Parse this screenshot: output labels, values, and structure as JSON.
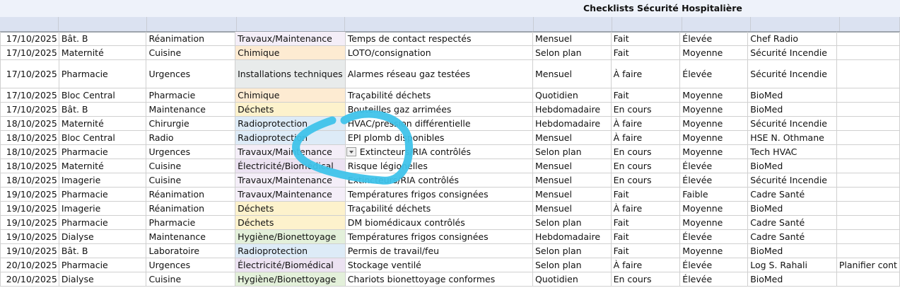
{
  "title": "Checklists Sécurité Hospitalière",
  "category_colors": {
    "Travaux/Maintenance": "#f4eef8",
    "Chimique": "#fdebd2",
    "Installations techniques": "#e8ebeb",
    "Déchets": "#fdf2cc",
    "Radioprotection": "#ddebf7",
    "Électricité/Biomédical": "#ece2f2",
    "Hygiène/Bionettoyage": "#e3f0da"
  },
  "annotation_color": "#3fc3ea",
  "dropdown_icon": "chevron-down-icon",
  "rows": [
    [
      "17/10/2025",
      "Bât. B",
      "Réanimation",
      "Travaux/Maintenance",
      "Temps de contact respectés",
      "Mensuel",
      "Fait",
      "Élevée",
      "Chef Radio",
      ""
    ],
    [
      "17/10/2025",
      "Maternité",
      "Cuisine",
      "Chimique",
      "LOTO/consignation",
      "Selon plan",
      "Fait",
      "Moyenne",
      "Sécurité Incendie",
      ""
    ],
    [
      "17/10/2025",
      "Pharmacie",
      "Urgences",
      "Installations techniques",
      "Alarmes réseau gaz testées",
      "Mensuel",
      "À faire",
      "Élevée",
      "Sécurité Incendie",
      ""
    ],
    [
      "17/10/2025",
      "Bloc Central",
      "Pharmacie",
      "Chimique",
      "Traçabilité déchets",
      "Quotidien",
      "Fait",
      "Moyenne",
      "BioMed",
      ""
    ],
    [
      "17/10/2025",
      "Bât. B",
      "Maintenance",
      "Déchets",
      "Bouteilles gaz arrimées",
      "Hebdomadaire",
      "En cours",
      "Moyenne",
      "BioMed",
      ""
    ],
    [
      "18/10/2025",
      "Maternité",
      "Chirurgie",
      "Radioprotection",
      "HVAC/pression différentielle",
      "Hebdomadaire",
      "À faire",
      "Moyenne",
      "Sécurité Incendie",
      ""
    ],
    [
      "18/10/2025",
      "Bloc Central",
      "Radio",
      "Radioprotection",
      "EPI plomb disponibles",
      "Mensuel",
      "À faire",
      "Moyenne",
      "HSE N. Othmane",
      ""
    ],
    [
      "18/10/2025",
      "Pharmacie",
      "Urgences",
      "Travaux/Maintenance",
      "Extincteurs/RIA contrôlés",
      "Selon plan",
      "En cours",
      "Moyenne",
      "Tech HVAC",
      ""
    ],
    [
      "18/10/2025",
      "Maternité",
      "Cuisine",
      "Électricité/Biomédical",
      "Risque légionelles",
      "Mensuel",
      "En cours",
      "Élevée",
      "BioMed",
      ""
    ],
    [
      "18/10/2025",
      "Imagerie",
      "Cuisine",
      "Travaux/Maintenance",
      "Extincteurs/RIA contrôlés",
      "Mensuel",
      "En cours",
      "Élevée",
      "Sécurité Incendie",
      ""
    ],
    [
      "19/10/2025",
      "Pharmacie",
      "Réanimation",
      "Travaux/Maintenance",
      "Températures frigos consignées",
      "Mensuel",
      "Fait",
      "Faible",
      "Cadre Santé",
      ""
    ],
    [
      "19/10/2025",
      "Imagerie",
      "Réanimation",
      "Déchets",
      "Traçabilité déchets",
      "Mensuel",
      "À faire",
      "Moyenne",
      "BioMed",
      ""
    ],
    [
      "19/10/2025",
      "Pharmacie",
      "Pharmacie",
      "Déchets",
      "DM biomédicaux contrôlés",
      "Selon plan",
      "Fait",
      "Moyenne",
      "Cadre Santé",
      ""
    ],
    [
      "19/10/2025",
      "Dialyse",
      "Maintenance",
      "Hygiène/Bionettoyage",
      "Températures frigos consignées",
      "Hebdomadaire",
      "Fait",
      "Élevée",
      "Cadre Santé",
      ""
    ],
    [
      "19/10/2025",
      "Bât. B",
      "Laboratoire",
      "Radioprotection",
      "Permis de travail/feu",
      "Selon plan",
      "Fait",
      "Moyenne",
      "BioMed",
      ""
    ],
    [
      "20/10/2025",
      "Pharmacie",
      "Urgences",
      "Électricité/Biomédical",
      "Stockage ventilé",
      "Selon plan",
      "À faire",
      "Élevée",
      "Log S. Rahali",
      "Planifier cont"
    ],
    [
      "20/10/2025",
      "Dialyse",
      "Cuisine",
      "Hygiène/Bionettoyage",
      "Chariots bionettoyage conformes",
      "Quotidien",
      "En cours",
      "Élevée",
      "BioMed",
      ""
    ]
  ]
}
